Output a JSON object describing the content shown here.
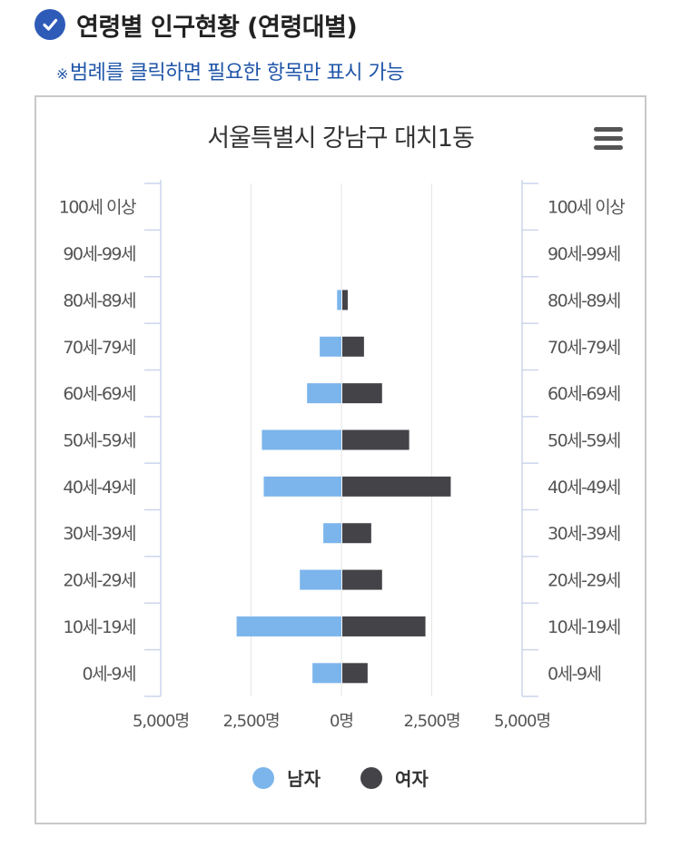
{
  "header": {
    "title": "연령별 인구현황 (연령대별)"
  },
  "note": {
    "mark": "※",
    "text": "범례를 클릭하면 필요한 항목만 표시 가능"
  },
  "chart_data": {
    "type": "bar",
    "orientation": "horizontal-population-pyramid",
    "title": "서울특별시 강남구 대치1동",
    "categories": [
      "100세 이상",
      "90세-99세",
      "80세-89세",
      "70세-79세",
      "60세-69세",
      "50세-59세",
      "40세-49세",
      "30세-39세",
      "20세-29세",
      "10세-19세",
      "0세-9세"
    ],
    "series": [
      {
        "name": "남자",
        "color": "#7cb5ec",
        "values": [
          0,
          0,
          120,
          600,
          950,
          2200,
          2150,
          500,
          1150,
          2900,
          800
        ]
      },
      {
        "name": "여자",
        "color": "#434348",
        "values": [
          0,
          0,
          150,
          600,
          1100,
          1850,
          3000,
          800,
          1100,
          2300,
          700
        ]
      }
    ],
    "xlim": [
      -5000,
      5000
    ],
    "xticks": [
      -5000,
      -2500,
      0,
      2500,
      5000
    ],
    "xtick_labels": [
      "5,000명",
      "2,500명",
      "0명",
      "2,500명",
      "5,000명"
    ],
    "legend_position": "bottom-center",
    "grid": true
  },
  "icons": {
    "check": "check-circle-icon",
    "menu": "hamburger-menu-icon"
  }
}
